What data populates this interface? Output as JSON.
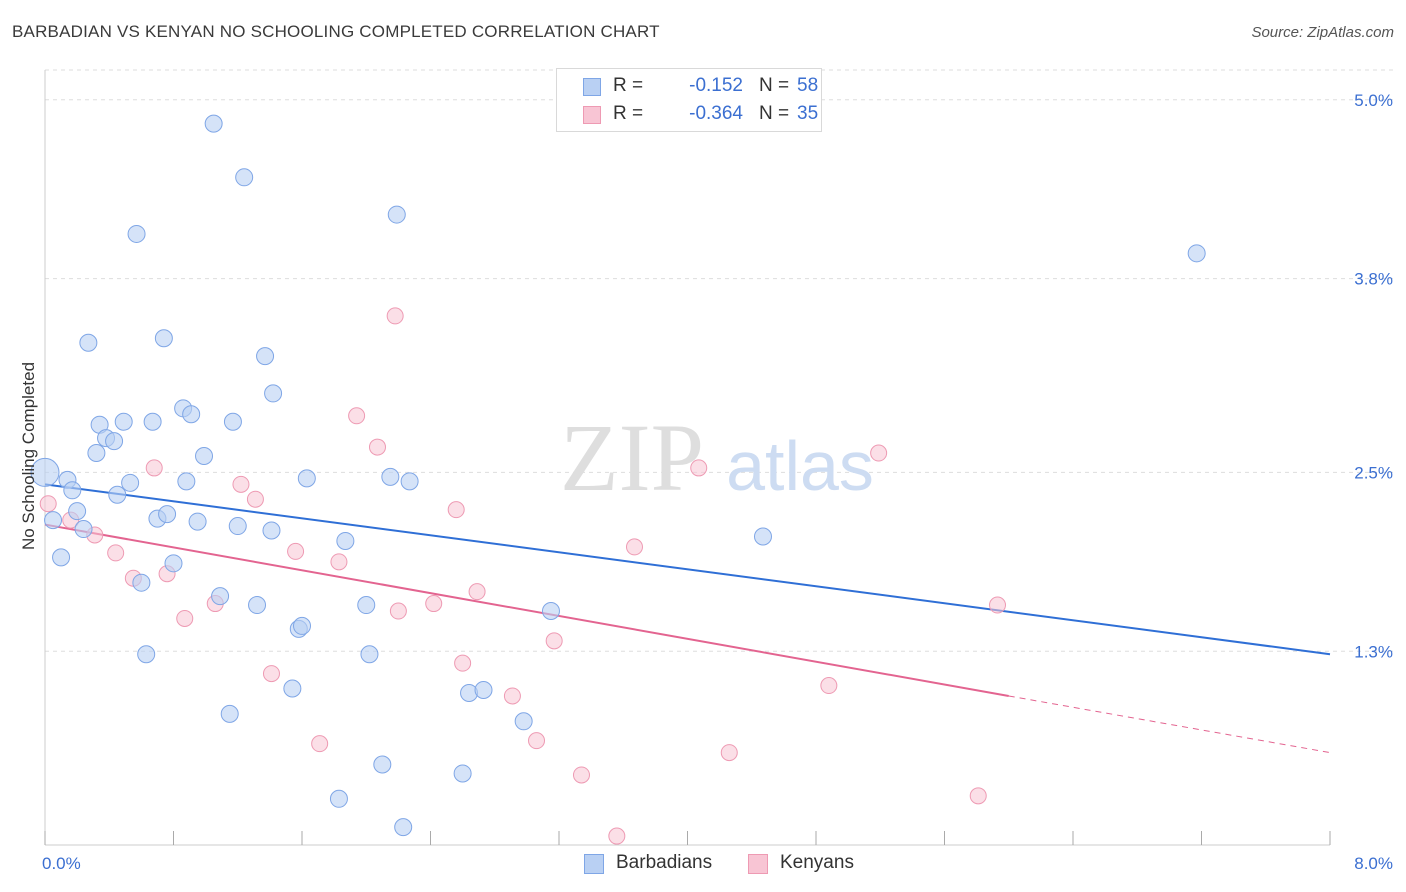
{
  "header": {
    "title": "BARBADIAN VS KENYAN NO SCHOOLING COMPLETED CORRELATION CHART",
    "source": "Source: ZipAtlas.com"
  },
  "watermark": {
    "zip": "ZIP",
    "atlas": "atlas"
  },
  "legend_top": {
    "rows": [
      {
        "r_label": "R =",
        "r_value": "-0.152",
        "n_label": "N =",
        "n_value": "58"
      },
      {
        "r_label": "R =",
        "r_value": "-0.364",
        "n_label": "N =",
        "n_value": "35"
      }
    ]
  },
  "legend_bottom": {
    "items": [
      "Barbadians",
      "Kenyans"
    ]
  },
  "colors": {
    "barbadians_fill": "#b9d0f3",
    "barbadians_stroke": "#7fa6e6",
    "barbadians_line": "#2f6fd6",
    "kenyans_fill": "#f8c5d4",
    "kenyans_stroke": "#ee9ab3",
    "kenyans_line": "#e36490",
    "tick_text": "#3b6fd1",
    "grid": "#dddddd"
  },
  "chart_data": {
    "type": "scatter",
    "title": "BARBADIAN VS KENYAN NO SCHOOLING COMPLETED CORRELATION CHART",
    "xlabel": "",
    "ylabel": "No Schooling Completed",
    "xlim": [
      0,
      8.0
    ],
    "ylim": [
      0,
      5.2
    ],
    "x_tick_labels": [
      "0.0%",
      "8.0%"
    ],
    "y_ticks": [
      1.3,
      2.5,
      3.8,
      5.0
    ],
    "y_tick_labels": [
      "1.3%",
      "2.5%",
      "3.8%",
      "5.0%"
    ],
    "grid": true,
    "legend_position": "top-center",
    "series": [
      {
        "name": "Barbadians",
        "r": -0.152,
        "n": 58,
        "trend": {
          "x": [
            0,
            8.0
          ],
          "y": [
            2.42,
            1.28
          ]
        },
        "points": [
          [
            0.0,
            2.5
          ],
          [
            0.05,
            2.18
          ],
          [
            0.1,
            1.93
          ],
          [
            0.14,
            2.45
          ],
          [
            0.17,
            2.38
          ],
          [
            0.2,
            2.24
          ],
          [
            0.24,
            2.12
          ],
          [
            0.27,
            3.37
          ],
          [
            0.32,
            2.63
          ],
          [
            0.34,
            2.82
          ],
          [
            0.38,
            2.73
          ],
          [
            0.43,
            2.71
          ],
          [
            0.45,
            2.35
          ],
          [
            0.49,
            2.84
          ],
          [
            0.53,
            2.43
          ],
          [
            0.57,
            4.1
          ],
          [
            0.6,
            1.76
          ],
          [
            0.63,
            1.28
          ],
          [
            0.67,
            2.84
          ],
          [
            0.7,
            2.19
          ],
          [
            0.74,
            3.4
          ],
          [
            0.76,
            2.22
          ],
          [
            0.8,
            1.89
          ],
          [
            0.86,
            2.93
          ],
          [
            0.88,
            2.44
          ],
          [
            0.91,
            2.89
          ],
          [
            0.95,
            2.17
          ],
          [
            0.99,
            2.61
          ],
          [
            1.05,
            4.84
          ],
          [
            1.09,
            1.67
          ],
          [
            1.15,
            0.88
          ],
          [
            1.17,
            2.84
          ],
          [
            1.2,
            2.14
          ],
          [
            1.24,
            4.48
          ],
          [
            1.32,
            1.61
          ],
          [
            1.37,
            3.28
          ],
          [
            1.41,
            2.11
          ],
          [
            1.42,
            3.03
          ],
          [
            1.54,
            1.05
          ],
          [
            1.58,
            1.45
          ],
          [
            1.6,
            1.47
          ],
          [
            1.63,
            2.46
          ],
          [
            1.83,
            0.31
          ],
          [
            1.87,
            2.04
          ],
          [
            2.0,
            1.61
          ],
          [
            2.02,
            1.28
          ],
          [
            2.1,
            0.54
          ],
          [
            2.15,
            2.47
          ],
          [
            2.19,
            4.23
          ],
          [
            2.23,
            0.12
          ],
          [
            2.27,
            2.44
          ],
          [
            2.6,
            0.48
          ],
          [
            2.64,
            1.02
          ],
          [
            2.73,
            1.04
          ],
          [
            2.98,
            0.83
          ],
          [
            3.15,
            1.57
          ],
          [
            4.47,
            2.07
          ],
          [
            7.17,
            3.97
          ]
        ]
      },
      {
        "name": "Kenyans",
        "r": -0.364,
        "n": 35,
        "trend": {
          "x": [
            0,
            6.0
          ],
          "y": [
            2.15,
            1.0
          ]
        },
        "trend_extension": {
          "x": [
            6.0,
            8.0
          ],
          "y": [
            1.0,
            0.62
          ]
        },
        "points": [
          [
            0.02,
            2.29
          ],
          [
            0.16,
            2.18
          ],
          [
            0.31,
            2.08
          ],
          [
            0.44,
            1.96
          ],
          [
            0.55,
            1.79
          ],
          [
            0.76,
            1.82
          ],
          [
            0.68,
            2.53
          ],
          [
            0.87,
            1.52
          ],
          [
            1.06,
            1.62
          ],
          [
            1.22,
            2.42
          ],
          [
            1.31,
            2.32
          ],
          [
            1.41,
            1.15
          ],
          [
            1.56,
            1.97
          ],
          [
            1.71,
            0.68
          ],
          [
            1.83,
            1.9
          ],
          [
            1.94,
            2.88
          ],
          [
            2.07,
            2.67
          ],
          [
            2.18,
            3.55
          ],
          [
            2.2,
            1.57
          ],
          [
            2.42,
            1.62
          ],
          [
            2.56,
            2.25
          ],
          [
            2.6,
            1.22
          ],
          [
            2.69,
            1.7
          ],
          [
            2.91,
            1.0
          ],
          [
            3.06,
            0.7
          ],
          [
            3.17,
            1.37
          ],
          [
            3.34,
            0.47
          ],
          [
            3.56,
            0.06
          ],
          [
            3.67,
            2.0
          ],
          [
            4.07,
            2.53
          ],
          [
            4.26,
            0.62
          ],
          [
            4.88,
            1.07
          ],
          [
            5.19,
            2.63
          ],
          [
            5.81,
            0.33
          ],
          [
            5.93,
            1.61
          ]
        ]
      }
    ]
  }
}
